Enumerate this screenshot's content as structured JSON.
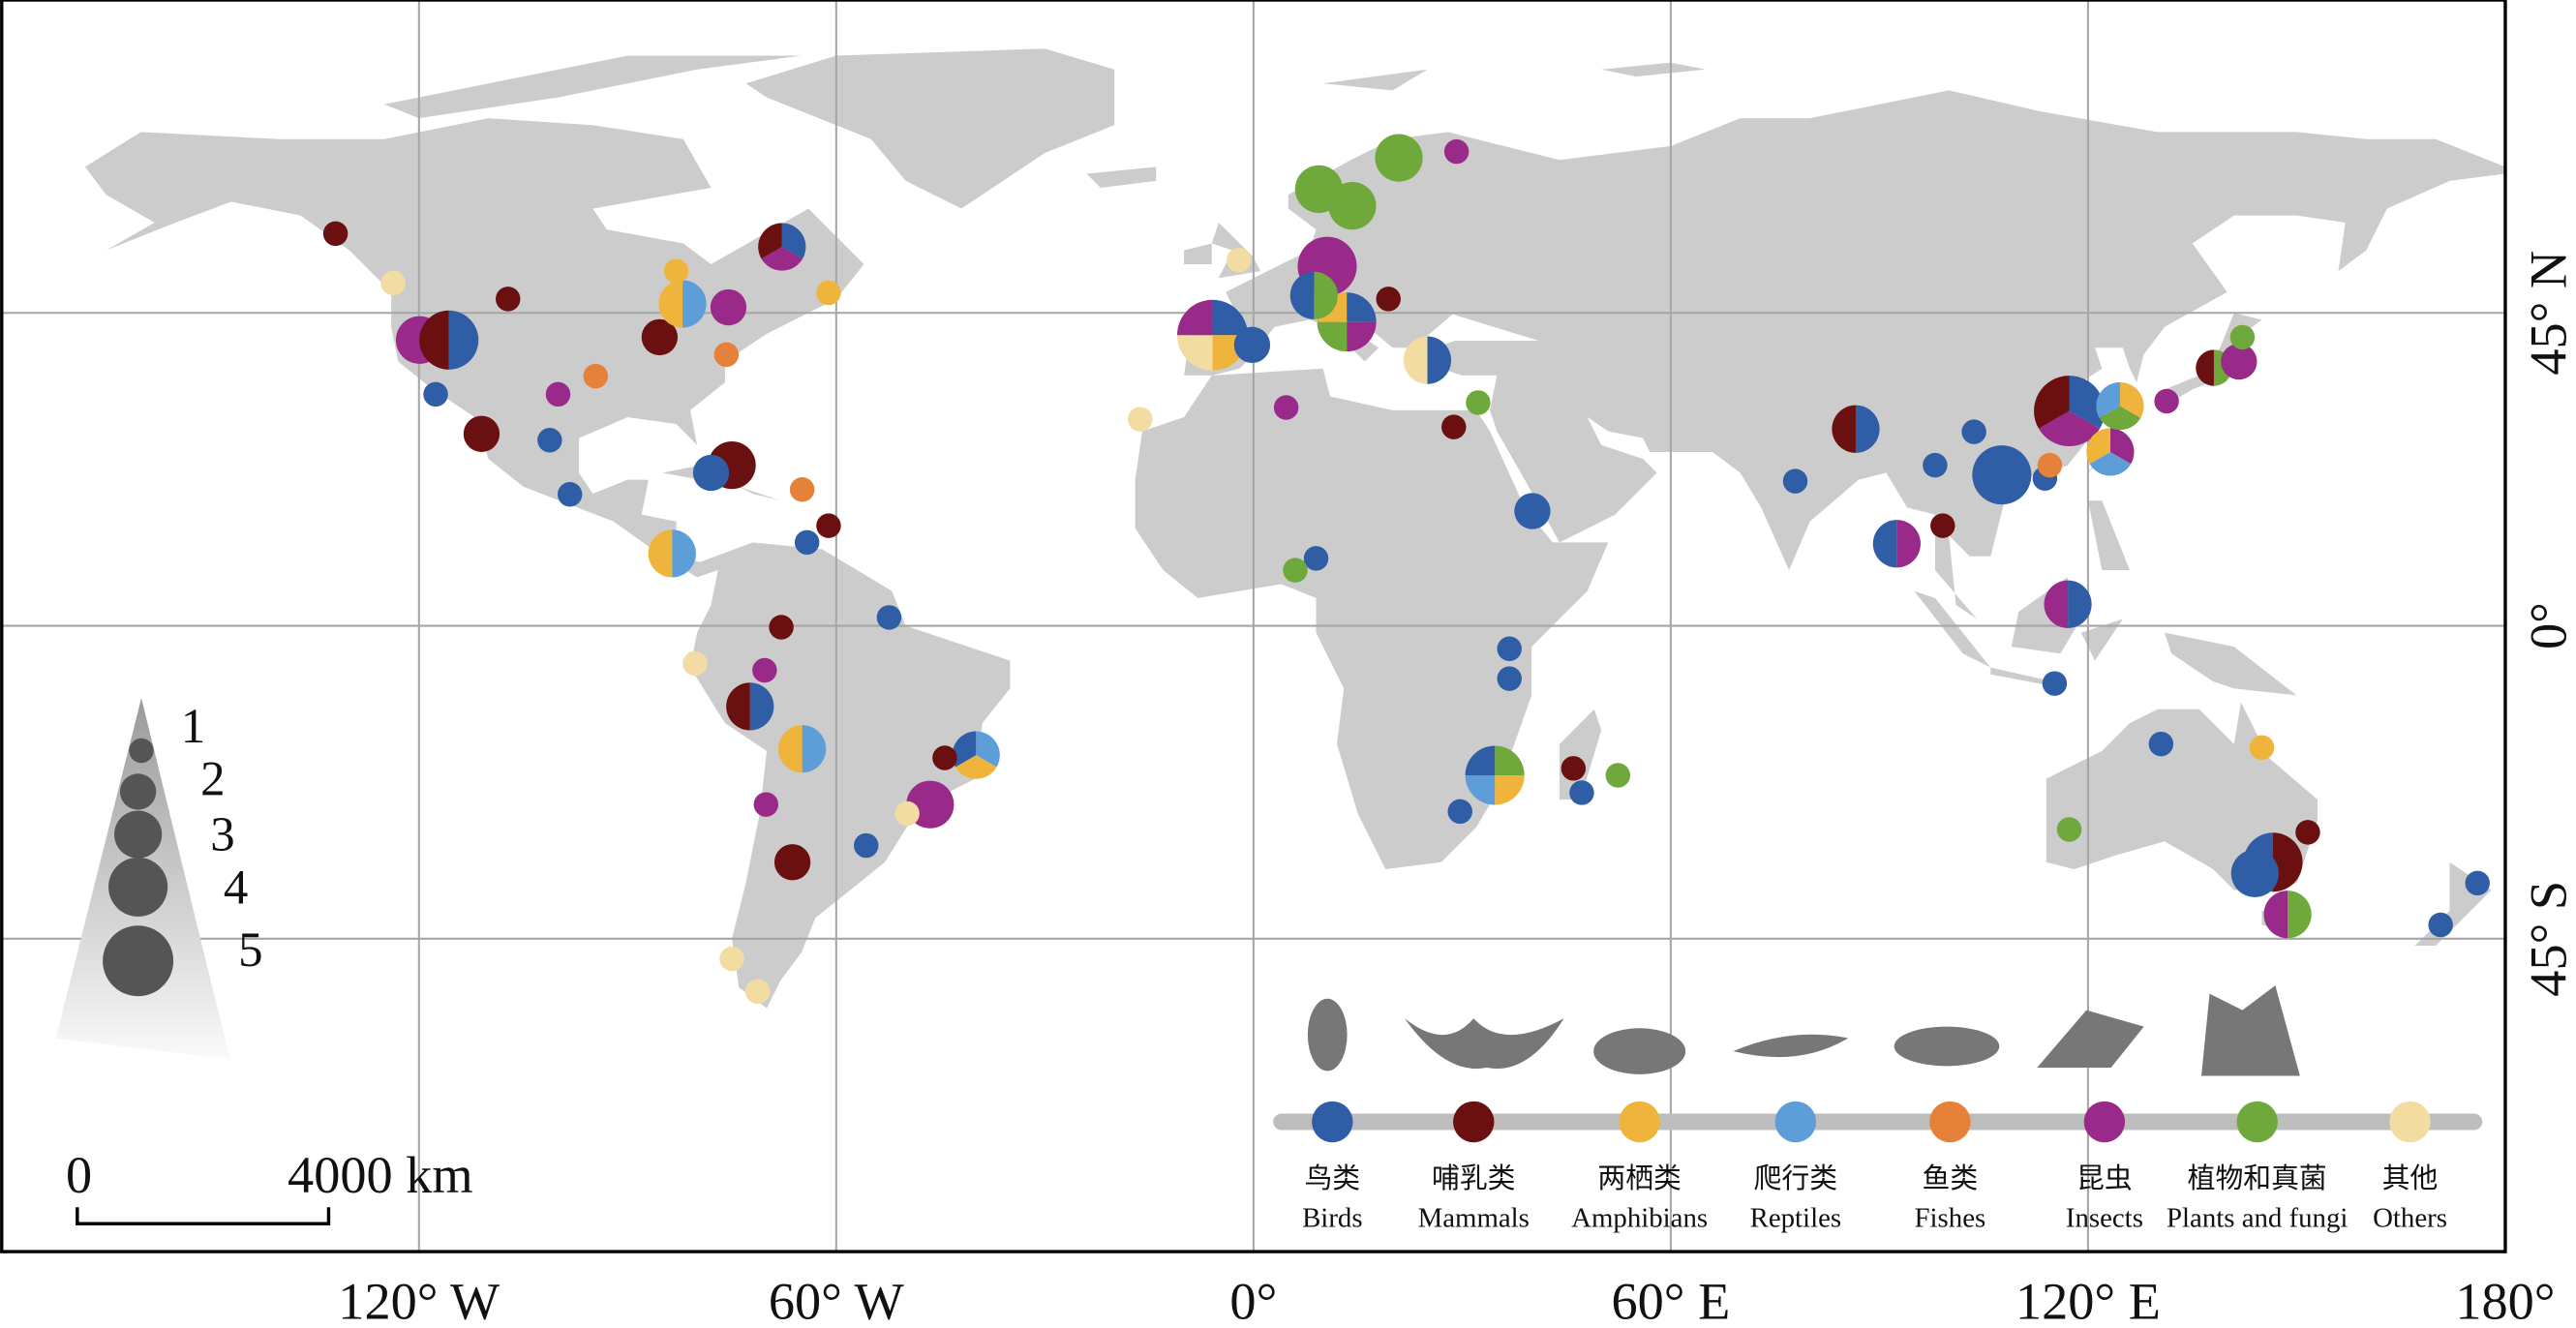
{
  "map": {
    "xlim": [
      -180,
      180
    ],
    "ylim": [
      -90,
      90
    ],
    "xticks": [
      {
        "value": -120,
        "label": "120° W"
      },
      {
        "value": -60,
        "label": "60° W"
      },
      {
        "value": 0,
        "label": "0°"
      },
      {
        "value": 60,
        "label": "60° E"
      },
      {
        "value": 120,
        "label": "120° E"
      },
      {
        "value": 180,
        "label": "180°"
      }
    ],
    "yticks": [
      {
        "value": 45,
        "label": "45° N"
      },
      {
        "value": 0,
        "label": "0°"
      },
      {
        "value": -45,
        "label": "45° S"
      }
    ]
  },
  "groups": [
    {
      "name_zh": "鸟类",
      "name_en": "Birds",
      "color": "#2f5ea6"
    },
    {
      "name_zh": "哺乳类",
      "name_en": "Mammals",
      "color": "#6b1010"
    },
    {
      "name_zh": "两栖类",
      "name_en": "Amphibians",
      "color": "#efb43c"
    },
    {
      "name_zh": "爬行类",
      "name_en": "Reptiles",
      "color": "#5e9ed8"
    },
    {
      "name_zh": "鱼类",
      "name_en": "Fishes",
      "color": "#e6813a"
    },
    {
      "name_zh": "昆虫",
      "name_en": "Insects",
      "color": "#9a2a8a"
    },
    {
      "name_zh": "植物和真菌",
      "name_en": "Plants and fungi",
      "color": "#6fa83b"
    },
    {
      "name_zh": "其他",
      "name_en": "Others",
      "color": "#f2dca2"
    }
  ],
  "size_legend": [
    1,
    2,
    3,
    4,
    5
  ],
  "scale_bar": {
    "start": "0",
    "end": "4000 km"
  },
  "sites": [
    {
      "lon": -132,
      "lat": 56.4,
      "size": 1,
      "groups": [
        1
      ]
    },
    {
      "lon": -123.7,
      "lat": 49.3,
      "size": 1,
      "groups": [
        7
      ]
    },
    {
      "lon": -119.9,
      "lat": 41.1,
      "size": 3,
      "groups": [
        5
      ]
    },
    {
      "lon": -115.7,
      "lat": 41.1,
      "size": 4,
      "groups": [
        0,
        1
      ]
    },
    {
      "lon": -111,
      "lat": 27.6,
      "size": 2,
      "groups": [
        1
      ]
    },
    {
      "lon": -117.6,
      "lat": 33.3,
      "size": 1,
      "groups": [
        0
      ]
    },
    {
      "lon": -107.2,
      "lat": 47,
      "size": 1,
      "groups": [
        1
      ]
    },
    {
      "lon": -85.4,
      "lat": 41.5,
      "size": 2,
      "groups": [
        1
      ]
    },
    {
      "lon": -82.1,
      "lat": 46.3,
      "size": 3,
      "groups": [
        3,
        2
      ]
    },
    {
      "lon": -75.5,
      "lat": 45.8,
      "size": 2,
      "groups": [
        5
      ]
    },
    {
      "lon": -67.8,
      "lat": 54.5,
      "size": 3,
      "groups": [
        0,
        5,
        1
      ]
    },
    {
      "lon": -61.1,
      "lat": 47.9,
      "size": 1,
      "groups": [
        2
      ]
    },
    {
      "lon": -83,
      "lat": 51,
      "size": 1,
      "groups": [
        2
      ]
    },
    {
      "lon": -100,
      "lat": 33.3,
      "size": 1,
      "groups": [
        5
      ]
    },
    {
      "lon": -94.6,
      "lat": 35.9,
      "size": 1,
      "groups": [
        4
      ]
    },
    {
      "lon": -101.2,
      "lat": 26.7,
      "size": 1,
      "groups": [
        0
      ]
    },
    {
      "lon": -98.3,
      "lat": 18.9,
      "size": 1,
      "groups": [
        0
      ]
    },
    {
      "lon": -75.8,
      "lat": 39,
      "size": 1,
      "groups": [
        4
      ]
    },
    {
      "lon": -75,
      "lat": 23.1,
      "size": 3,
      "groups": [
        1
      ]
    },
    {
      "lon": -78,
      "lat": 22,
      "size": 2,
      "groups": [
        0
      ]
    },
    {
      "lon": -64.9,
      "lat": 19.6,
      "size": 1,
      "groups": [
        4
      ]
    },
    {
      "lon": -83.6,
      "lat": 10.4,
      "size": 3,
      "groups": [
        3,
        2
      ]
    },
    {
      "lon": -61.1,
      "lat": 14.4,
      "size": 1,
      "groups": [
        1
      ]
    },
    {
      "lon": -64.2,
      "lat": 12,
      "size": 1,
      "groups": [
        0
      ]
    },
    {
      "lon": -67.9,
      "lat": -0.2,
      "size": 1,
      "groups": [
        1
      ]
    },
    {
      "lon": -52.4,
      "lat": 1.2,
      "size": 1,
      "groups": [
        0
      ]
    },
    {
      "lon": -72.4,
      "lat": -11.6,
      "size": 3,
      "groups": [
        0,
        1
      ]
    },
    {
      "lon": -80.3,
      "lat": -5.4,
      "size": 1,
      "groups": [
        7
      ]
    },
    {
      "lon": -70.3,
      "lat": -6.4,
      "size": 1,
      "groups": [
        5
      ]
    },
    {
      "lon": -64.9,
      "lat": -17.7,
      "size": 3,
      "groups": [
        3,
        2
      ]
    },
    {
      "lon": -70.1,
      "lat": -25.7,
      "size": 1,
      "groups": [
        5
      ]
    },
    {
      "lon": -66.3,
      "lat": -34,
      "size": 2,
      "groups": [
        1
      ]
    },
    {
      "lon": -55.7,
      "lat": -31.6,
      "size": 1,
      "groups": [
        0
      ]
    },
    {
      "lon": -46.5,
      "lat": -25.7,
      "size": 3,
      "groups": [
        5
      ]
    },
    {
      "lon": -39.9,
      "lat": -18.6,
      "size": 3,
      "groups": [
        3,
        2,
        0
      ]
    },
    {
      "lon": -44.4,
      "lat": -19,
      "size": 1,
      "groups": [
        1
      ]
    },
    {
      "lon": -49.8,
      "lat": -27,
      "size": 1,
      "groups": [
        7
      ]
    },
    {
      "lon": -75,
      "lat": -47.9,
      "size": 1,
      "groups": [
        7
      ]
    },
    {
      "lon": -71.3,
      "lat": -52.6,
      "size": 1,
      "groups": [
        7
      ]
    },
    {
      "lon": -5.9,
      "lat": 41.8,
      "size": 5,
      "groups": [
        0,
        2,
        7,
        5
      ]
    },
    {
      "lon": -0.2,
      "lat": 40.4,
      "size": 2,
      "groups": [
        0
      ]
    },
    {
      "lon": 9.4,
      "lat": 62.8,
      "size": 3,
      "groups": [
        6
      ]
    },
    {
      "lon": 14.2,
      "lat": 60.4,
      "size": 3,
      "groups": [
        6
      ]
    },
    {
      "lon": 20.9,
      "lat": 67.3,
      "size": 3,
      "groups": [
        6
      ]
    },
    {
      "lon": 29.2,
      "lat": 68.2,
      "size": 1,
      "groups": [
        5
      ]
    },
    {
      "lon": 10.6,
      "lat": 51.7,
      "size": 4,
      "groups": [
        5
      ]
    },
    {
      "lon": 13.4,
      "lat": 43.7,
      "size": 4,
      "groups": [
        0,
        5,
        6,
        2
      ]
    },
    {
      "lon": 8.7,
      "lat": 47.5,
      "size": 3,
      "groups": [
        6,
        0
      ]
    },
    {
      "lon": 19.4,
      "lat": 47,
      "size": 1,
      "groups": [
        1
      ]
    },
    {
      "lon": 25,
      "lat": 38.2,
      "size": 3,
      "groups": [
        0,
        7
      ]
    },
    {
      "lon": 4.7,
      "lat": 31.4,
      "size": 1,
      "groups": [
        5
      ]
    },
    {
      "lon": -2.1,
      "lat": 52.6,
      "size": 1,
      "groups": [
        7
      ]
    },
    {
      "lon": 28.8,
      "lat": 28.6,
      "size": 1,
      "groups": [
        1
      ]
    },
    {
      "lon": 32.3,
      "lat": 32.1,
      "size": 1,
      "groups": [
        6
      ]
    },
    {
      "lon": -16.3,
      "lat": 29.7,
      "size": 1,
      "groups": [
        7
      ]
    },
    {
      "lon": 40.1,
      "lat": 16.5,
      "size": 2,
      "groups": [
        0
      ]
    },
    {
      "lon": 9,
      "lat": 9.7,
      "size": 1,
      "groups": [
        0
      ]
    },
    {
      "lon": 6,
      "lat": 8,
      "size": 1,
      "groups": [
        6
      ]
    },
    {
      "lon": 36.8,
      "lat": -3.3,
      "size": 1,
      "groups": [
        0
      ]
    },
    {
      "lon": 36.8,
      "lat": -7.6,
      "size": 1,
      "groups": [
        0
      ]
    },
    {
      "lon": 34.7,
      "lat": -21.5,
      "size": 4,
      "groups": [
        6,
        2,
        3,
        0
      ]
    },
    {
      "lon": 29.7,
      "lat": -26.7,
      "size": 1,
      "groups": [
        0
      ]
    },
    {
      "lon": 46,
      "lat": -20.5,
      "size": 1,
      "groups": [
        1
      ]
    },
    {
      "lon": 47.2,
      "lat": -24,
      "size": 1,
      "groups": [
        0
      ]
    },
    {
      "lon": 52.4,
      "lat": -21.5,
      "size": 1,
      "groups": [
        6
      ]
    },
    {
      "lon": 86.6,
      "lat": 28.3,
      "size": 3,
      "groups": [
        0,
        1
      ]
    },
    {
      "lon": 77.9,
      "lat": 20.8,
      "size": 1,
      "groups": [
        0
      ]
    },
    {
      "lon": 92.5,
      "lat": 11.8,
      "size": 3,
      "groups": [
        5,
        0
      ]
    },
    {
      "lon": 99.1,
      "lat": 14.4,
      "size": 1,
      "groups": [
        1
      ]
    },
    {
      "lon": 107.6,
      "lat": 21.7,
      "size": 4,
      "groups": [
        0
      ]
    },
    {
      "lon": 117.3,
      "lat": 30.9,
      "size": 5,
      "groups": [
        0,
        5,
        1
      ]
    },
    {
      "lon": 123.2,
      "lat": 25,
      "size": 3,
      "groups": [
        5,
        3,
        2
      ]
    },
    {
      "lon": 124.6,
      "lat": 31.6,
      "size": 3,
      "groups": [
        2,
        6,
        3
      ]
    },
    {
      "lon": 113.8,
      "lat": 21.2,
      "size": 1,
      "groups": [
        0
      ]
    },
    {
      "lon": 114.5,
      "lat": 23.1,
      "size": 1,
      "groups": [
        4
      ]
    },
    {
      "lon": 117.1,
      "lat": 3.1,
      "size": 3,
      "groups": [
        0,
        5
      ]
    },
    {
      "lon": 115.2,
      "lat": -8.3,
      "size": 1,
      "groups": [
        0
      ]
    },
    {
      "lon": 131.3,
      "lat": 32.3,
      "size": 1,
      "groups": [
        5
      ]
    },
    {
      "lon": 138.1,
      "lat": 37.1,
      "size": 2,
      "groups": [
        6,
        1
      ]
    },
    {
      "lon": 141.7,
      "lat": 38,
      "size": 2,
      "groups": [
        5
      ]
    },
    {
      "lon": 142.2,
      "lat": 41.5,
      "size": 1,
      "groups": [
        6
      ]
    },
    {
      "lon": 130.5,
      "lat": -17,
      "size": 1,
      "groups": [
        0
      ]
    },
    {
      "lon": 145,
      "lat": -17.5,
      "size": 1,
      "groups": [
        2
      ]
    },
    {
      "lon": 117.3,
      "lat": -29.3,
      "size": 1,
      "groups": [
        6
      ]
    },
    {
      "lon": 151.6,
      "lat": -29.7,
      "size": 1,
      "groups": [
        1
      ]
    },
    {
      "lon": 146.6,
      "lat": -34,
      "size": 4,
      "groups": [
        1,
        0
      ]
    },
    {
      "lon": 144,
      "lat": -35.6,
      "size": 3,
      "groups": [
        0
      ]
    },
    {
      "lon": 148.7,
      "lat": -41.5,
      "size": 3,
      "groups": [
        6,
        5
      ]
    },
    {
      "lon": 176,
      "lat": -37,
      "size": 1,
      "groups": [
        0
      ]
    },
    {
      "lon": 170.7,
      "lat": -43,
      "size": 1,
      "groups": [
        0
      ]
    },
    {
      "lon": 103.6,
      "lat": 27.9,
      "size": 1,
      "groups": [
        0
      ]
    },
    {
      "lon": 98,
      "lat": 23.1,
      "size": 1,
      "groups": [
        0
      ]
    }
  ]
}
